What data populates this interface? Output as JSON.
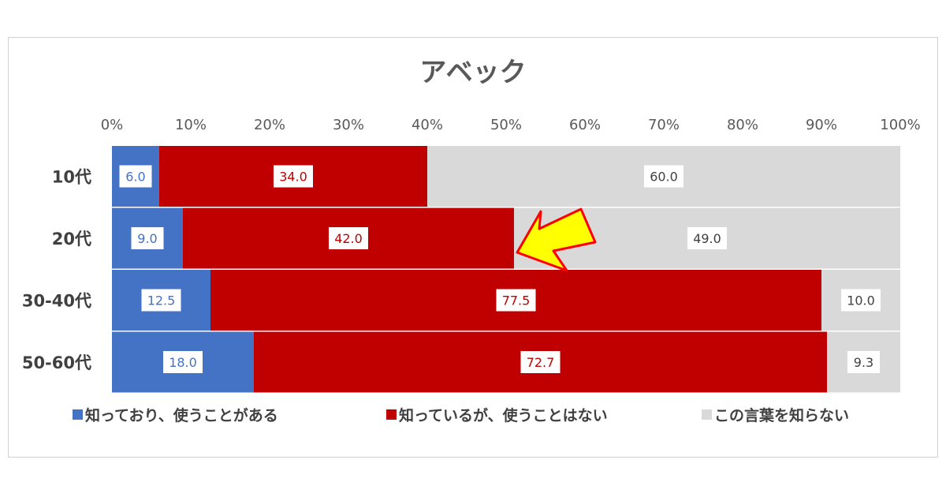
{
  "chart_data": {
    "type": "bar",
    "orientation": "horizontal",
    "stacked": "percent",
    "title": "アベック",
    "categories": [
      "10代",
      "20代",
      "30-40代",
      "50-60代"
    ],
    "series": [
      {
        "name": "知っており、使うことがある",
        "color": "#4472c4",
        "label_color": "#4472c4",
        "values": [
          6.0,
          9.0,
          12.5,
          18.0
        ]
      },
      {
        "name": "知っているが、使うことはない",
        "color": "#c00000",
        "label_color": "#c00000",
        "values": [
          34.0,
          42.0,
          77.5,
          72.7
        ]
      },
      {
        "name": "この言葉を知らない",
        "color": "#d9d9d9",
        "label_color": "#404040",
        "values": [
          60.0,
          49.0,
          10.0,
          9.3
        ]
      }
    ],
    "xaxis_ticks": [
      "0%",
      "10%",
      "20%",
      "30%",
      "40%",
      "50%",
      "60%",
      "70%",
      "80%",
      "90%",
      "100%"
    ],
    "xlim": [
      0,
      100
    ],
    "axis_position": "top",
    "legend_position": "bottom",
    "grid": false,
    "annotation": {
      "type": "arrow",
      "color": "#ffff00",
      "stroke": "#ff0000",
      "points_to_category": "20代"
    }
  }
}
